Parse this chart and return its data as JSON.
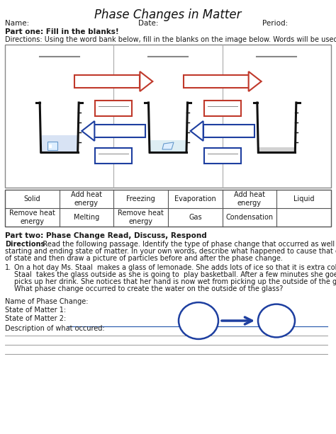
{
  "title": "Phase Changes in Matter",
  "bg_color": "#ffffff",
  "header_labels": [
    "Name:",
    "Date:",
    "Period:"
  ],
  "part1_bold": "Part one: Fill in the blanks!",
  "part1_dir": "Directions: Using the word bank below, fill in the blanks on the image below. Words will be used once.",
  "table_row1": [
    "Solid",
    "Add heat\nenergy",
    "Freezing",
    "Evaporation",
    "Add heat\nenergy",
    "Liquid"
  ],
  "table_row2": [
    "Remove heat\nenergy",
    "Melting",
    "Remove heat\nenergy",
    "Gas",
    "Condensation",
    ""
  ],
  "part2_bold": "Part two: Phase Change Read, Discuss, Respond",
  "part2_dir1": "Directions: Read the following passage. Identify the type of phase change that occurred as well as the",
  "part2_dir2": "starting and ending state of matter. In your own words, describe what happened to cause that change",
  "part2_dir3": "of state and then draw a picture of particles before and after the phase change.",
  "q1_lines": [
    "On a hot day Ms. Staal  makes a glass of lemonade. She adds lots of ice so that it is extra cold. Ms.",
    "Staal  takes the glass outside as she is going to  play basketball. After a few minutes she goes and",
    "picks up her drink. She notices that her hand is now wet from picking up the outside of the glass.",
    "What phase change occurred to create the water on the outside of the glass?"
  ],
  "label_phase": "Name of Phase Change:",
  "label_matter1": "State of Matter 1:",
  "label_matter2": "State of Matter 2:",
  "label_desc": "Description of what occured:",
  "text_color": "#1a1a1a",
  "blue_color": "#1e3fa0",
  "red_color": "#c0392b",
  "beaker_color": "#111111",
  "table_border": "#555555",
  "diag_border": "#888888"
}
